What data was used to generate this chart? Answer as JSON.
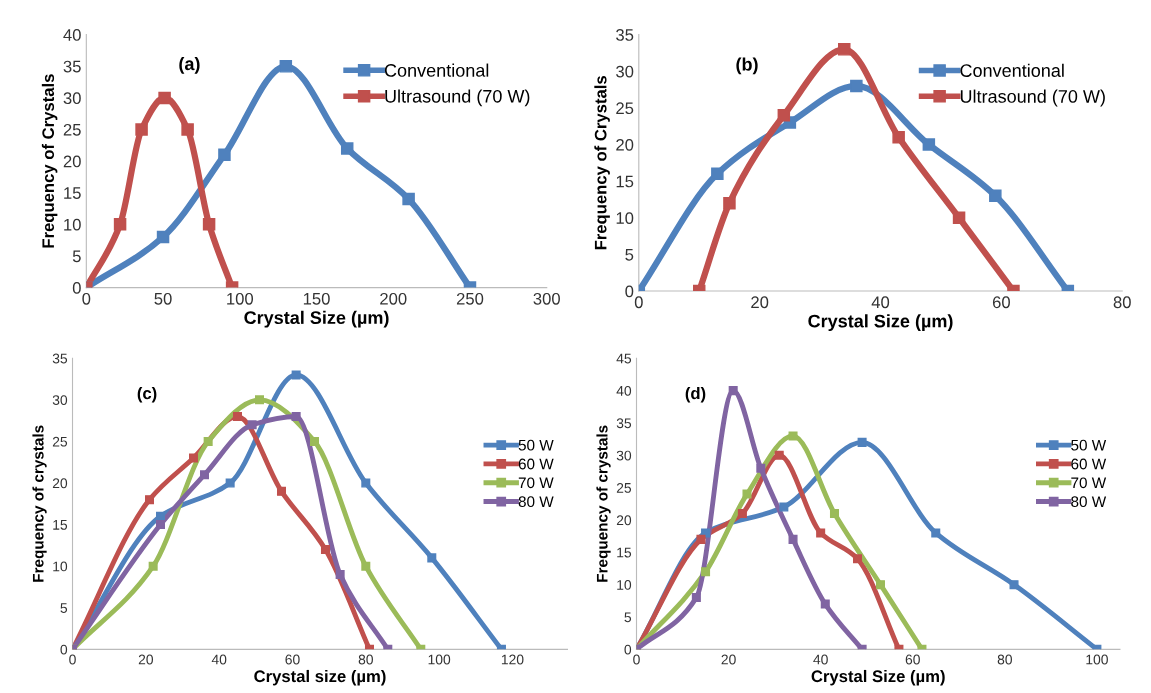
{
  "chart_data": [
    {
      "type": "line",
      "xlabel": "Crystal Size (µm)",
      "ylabel": "Frequency of Crystals",
      "annotations": [
        "(a)"
      ],
      "xlim": [
        0,
        300
      ],
      "xticks": [
        0,
        50,
        100,
        150,
        200,
        250,
        300
      ],
      "ylim": [
        0,
        40
      ],
      "yticks": [
        0,
        5,
        10,
        15,
        20,
        25,
        30,
        35,
        40
      ],
      "legend": "top right",
      "marker": "square",
      "line_style": "solid",
      "grid": false,
      "series": [
        {
          "name": "Conventional",
          "color": "#4f81bd",
          "x": [
            0,
            50,
            90,
            130,
            170,
            210,
            250
          ],
          "values": [
            0,
            8,
            21,
            35,
            22,
            14,
            0
          ]
        },
        {
          "name": "Ultrasound (70 W)",
          "color": "#c0504d",
          "x": [
            0,
            22,
            36,
            51,
            66,
            80,
            95
          ],
          "values": [
            0,
            10,
            25,
            30,
            25,
            10,
            0
          ]
        }
      ]
    },
    {
      "type": "line",
      "xlabel": "Crystal Size (µm)",
      "ylabel": "Frequency of Crystals",
      "annotations": [
        "(b)"
      ],
      "xlim": [
        0,
        80
      ],
      "xticks": [
        0,
        20,
        40,
        60,
        80
      ],
      "ylim": [
        0,
        35
      ],
      "yticks": [
        0,
        5,
        10,
        15,
        20,
        25,
        30,
        35
      ],
      "legend": "top right",
      "marker": "square",
      "line_style": "solid",
      "grid": false,
      "series": [
        {
          "name": "Conventional",
          "color": "#4f81bd",
          "x": [
            0,
            13,
            25,
            36,
            48,
            59,
            71
          ],
          "values": [
            0,
            16,
            23,
            28,
            20,
            13,
            0
          ]
        },
        {
          "name": "Ultrasound (70 W)",
          "color": "#c0504d",
          "x": [
            10,
            15,
            24,
            34,
            43,
            53,
            62
          ],
          "values": [
            0,
            12,
            24,
            33,
            21,
            10,
            0
          ]
        }
      ]
    },
    {
      "type": "line",
      "xlabel": "Crystal size (µm)",
      "ylabel": "Frequency of crystals",
      "annotations": [
        "(c)"
      ],
      "xlim": [
        0,
        135
      ],
      "xticks": [
        0,
        20,
        40,
        60,
        80,
        100,
        120
      ],
      "ylim": [
        0,
        35
      ],
      "yticks": [
        0,
        5,
        10,
        15,
        20,
        25,
        30,
        35
      ],
      "legend": "right",
      "marker": "square",
      "line_style": "solid",
      "grid": false,
      "series": [
        {
          "name": "50 W",
          "color": "#4f81bd",
          "x": [
            0,
            24,
            43,
            61,
            80,
            98,
            117
          ],
          "values": [
            0,
            16,
            20,
            33,
            20,
            11,
            0
          ]
        },
        {
          "name": "60 W",
          "color": "#c0504d",
          "x": [
            0,
            21,
            33,
            45,
            57,
            69,
            81
          ],
          "values": [
            0,
            18,
            23,
            28,
            19,
            12,
            0
          ]
        },
        {
          "name": "70 W",
          "color": "#9bbb59",
          "x": [
            0,
            22,
            37,
            51,
            66,
            80,
            95
          ],
          "values": [
            0,
            10,
            25,
            30,
            25,
            10,
            0
          ]
        },
        {
          "name": "80 W",
          "color": "#8064a2",
          "x": [
            0,
            24,
            36,
            49,
            61,
            73,
            86
          ],
          "values": [
            0,
            15,
            21,
            27,
            28,
            9,
            0
          ]
        }
      ]
    },
    {
      "type": "line",
      "xlabel": "Crystal Size (µm)",
      "ylabel": "Frequency of crystals",
      "annotations": [
        "(d)"
      ],
      "xlim": [
        0,
        105
      ],
      "xticks": [
        0,
        20,
        40,
        60,
        80,
        100
      ],
      "ylim": [
        0,
        45
      ],
      "yticks": [
        0,
        5,
        10,
        15,
        20,
        25,
        30,
        35,
        40,
        45
      ],
      "legend": "right",
      "marker": "square",
      "line_style": "solid",
      "grid": false,
      "series": [
        {
          "name": "50 W",
          "color": "#4f81bd",
          "x": [
            0,
            15,
            32,
            49,
            65,
            82,
            100
          ],
          "values": [
            0,
            18,
            22,
            32,
            18,
            10,
            0
          ]
        },
        {
          "name": "60 W",
          "color": "#c0504d",
          "x": [
            0,
            14,
            23,
            31,
            40,
            48,
            57
          ],
          "values": [
            0,
            17,
            21,
            30,
            18,
            14,
            0
          ]
        },
        {
          "name": "70 W",
          "color": "#9bbb59",
          "x": [
            0,
            15,
            24,
            34,
            43,
            53,
            62
          ],
          "values": [
            0,
            12,
            24,
            33,
            21,
            10,
            0
          ]
        },
        {
          "name": "80 W",
          "color": "#8064a2",
          "x": [
            0,
            13,
            21,
            27,
            34,
            41,
            49
          ],
          "values": [
            0,
            8,
            40,
            28,
            17,
            7,
            0
          ]
        }
      ]
    }
  ]
}
